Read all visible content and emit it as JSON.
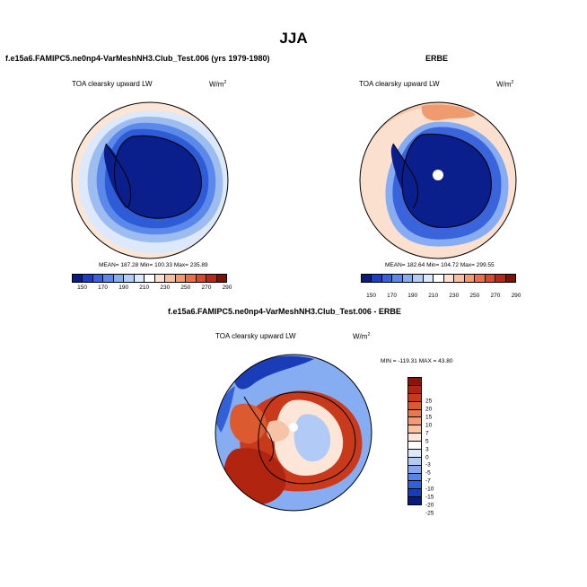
{
  "title": "JJA",
  "panels": {
    "model": {
      "subtitle": "f.e15a6.FAMIPC5.ne0np4-VarMeshNH3.Club_Test.006 (yrs 1979-1980)",
      "variable": "TOA clearsky upward LW",
      "units": "W/m",
      "units_sup": "2",
      "stats": "MEAN= 187.28  Min= 100.33  Max= 235.89"
    },
    "obs": {
      "subtitle": "ERBE",
      "variable": "TOA clearsky upward LW",
      "units": "W/m",
      "units_sup": "2",
      "stats": "MEAN= 182.64  Min= 104.72  Max= 299.55"
    },
    "diff": {
      "subtitle": "f.e15a6.FAMIPC5.ne0np4-VarMeshNH3.Club_Test.006 - ERBE",
      "variable": "TOA clearsky upward LW",
      "units": "W/m",
      "units_sup": "2",
      "stats": "MIN = -119.31 MAX =  43.80"
    }
  },
  "colorbar_abs": {
    "ticks": [
      "150",
      "170",
      "190",
      "210",
      "230",
      "250",
      "270",
      "290"
    ],
    "colors": [
      "#0a1b85",
      "#1b3fc4",
      "#3463dc",
      "#5a89ea",
      "#86acf2",
      "#b4cdf6",
      "#dde9fb",
      "#ffffff",
      "#fbe1cf",
      "#f6c0a0",
      "#f09a70",
      "#e6704a",
      "#d44a2a",
      "#b32a17",
      "#7a1208"
    ]
  },
  "colorbar_diff": {
    "ticks": [
      "25",
      "20",
      "15",
      "10",
      "7",
      "5",
      "3",
      "0",
      "-3",
      "-5",
      "-7",
      "-10",
      "-15",
      "-20",
      "-25"
    ],
    "colors": [
      "#8a140a",
      "#b02410",
      "#c93a1c",
      "#dc5a30",
      "#e8784e",
      "#f19a74",
      "#f7c3a6",
      "#fde6d8",
      "#ffffff",
      "#dce8fb",
      "#b2cbf6",
      "#84a8f0",
      "#5785e6",
      "#3260d6",
      "#1a3cb8",
      "#0a1b80"
    ]
  },
  "colors": {
    "deep_blue": "#0b1f8c",
    "mid_blue": "#3a64dc",
    "light_blue": "#9dbcf0",
    "cream": "#fbe6d5",
    "peach": "#f6c3a3",
    "dark_red": "#b8230f",
    "red": "#d8451f"
  }
}
